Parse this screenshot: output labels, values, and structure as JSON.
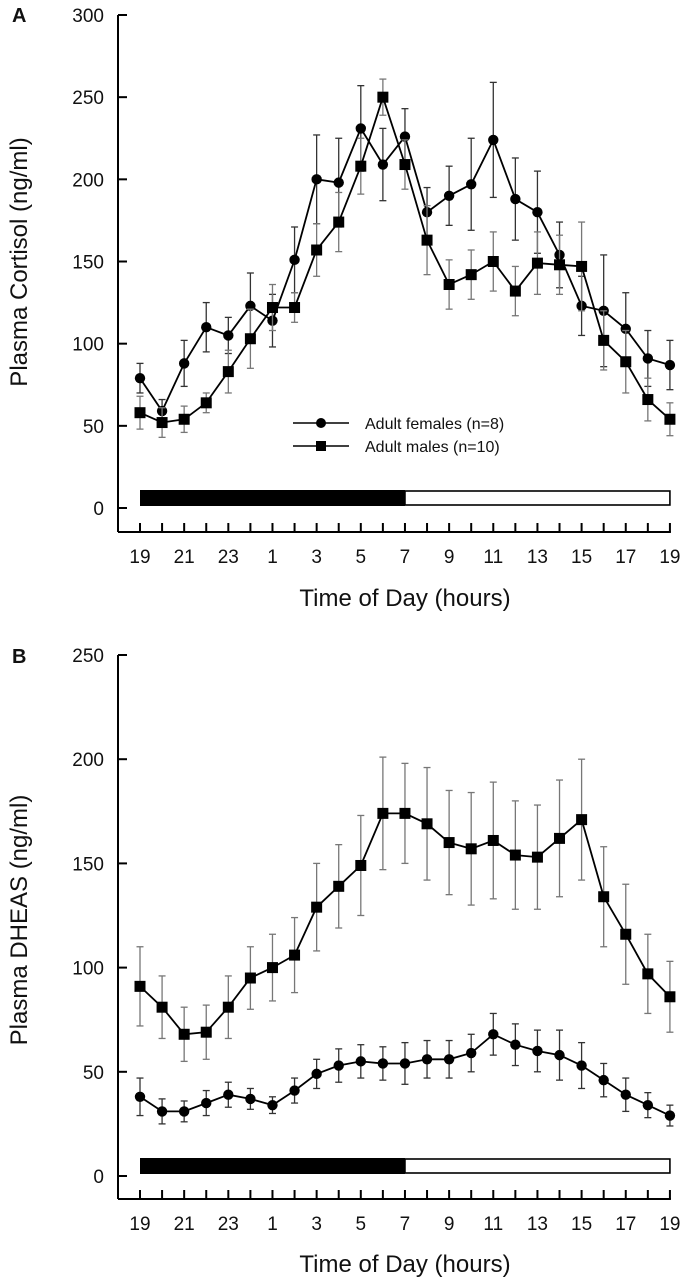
{
  "chart_data": [
    {
      "type": "line",
      "panel_label": "A",
      "title": "",
      "xlabel": "Time of Day (hours)",
      "ylabel": "Plasma Cortisol (ng/ml)",
      "ylim": [
        0,
        300
      ],
      "yticks": [
        0,
        50,
        100,
        150,
        200,
        250,
        300
      ],
      "x": [
        19,
        20,
        21,
        22,
        23,
        24,
        1,
        2,
        3,
        4,
        5,
        6,
        7,
        8,
        9,
        10,
        11,
        12,
        13,
        14,
        15,
        16,
        17,
        18,
        19
      ],
      "x_tick_labels": [
        "19",
        "",
        "21",
        "",
        "23",
        "",
        "1",
        "",
        "3",
        "",
        "5",
        "",
        "7",
        "",
        "9",
        "",
        "11",
        "",
        "13",
        "",
        "15",
        "",
        "17",
        "",
        "19"
      ],
      "grid": false,
      "legend": {
        "placement": "center-left",
        "entries": [
          "Adult females (n=8)",
          "Adult males (n=10)"
        ]
      },
      "light_dark_bar": {
        "dark": "19-7",
        "light": "7-19"
      },
      "series": [
        {
          "name": "Adult females (n=8)",
          "marker": "circle",
          "values": [
            79,
            59,
            88,
            110,
            105,
            123,
            114,
            151,
            200,
            198,
            231,
            209,
            226,
            180,
            190,
            197,
            224,
            188,
            180,
            154,
            123,
            120,
            109,
            91,
            87
          ],
          "errors": [
            9,
            7,
            14,
            15,
            11,
            20,
            16,
            20,
            27,
            27,
            26,
            22,
            17,
            15,
            18,
            28,
            35,
            25,
            25,
            20,
            18,
            34,
            22,
            17,
            15
          ]
        },
        {
          "name": "Adult males (n=10)",
          "marker": "square",
          "values": [
            58,
            52,
            54,
            64,
            83,
            103,
            122,
            122,
            157,
            174,
            208,
            250,
            209,
            163,
            136,
            142,
            150,
            132,
            149,
            148,
            147,
            102,
            89,
            66,
            54
          ],
          "errors": [
            10,
            9,
            8,
            6,
            13,
            18,
            14,
            9,
            16,
            18,
            17,
            11,
            15,
            21,
            15,
            15,
            18,
            15,
            19,
            18,
            27,
            18,
            19,
            13,
            10
          ]
        }
      ]
    },
    {
      "type": "line",
      "panel_label": "B",
      "title": "",
      "xlabel": "Time of Day (hours)",
      "ylabel": "Plasma DHEAS (ng/ml)",
      "ylim": [
        0,
        250
      ],
      "yticks": [
        0,
        50,
        100,
        150,
        200,
        250
      ],
      "x": [
        19,
        20,
        21,
        22,
        23,
        24,
        1,
        2,
        3,
        4,
        5,
        6,
        7,
        8,
        9,
        10,
        11,
        12,
        13,
        14,
        15,
        16,
        17,
        18,
        19
      ],
      "x_tick_labels": [
        "19",
        "",
        "21",
        "",
        "23",
        "",
        "1",
        "",
        "3",
        "",
        "5",
        "",
        "7",
        "",
        "9",
        "",
        "11",
        "",
        "13",
        "",
        "15",
        "",
        "17",
        "",
        "19"
      ],
      "grid": false,
      "light_dark_bar": {
        "dark": "19-7",
        "light": "7-19"
      },
      "series": [
        {
          "name": "Adult females (n=8)",
          "marker": "circle",
          "values": [
            38,
            31,
            31,
            35,
            39,
            37,
            34,
            41,
            49,
            53,
            55,
            54,
            54,
            56,
            56,
            59,
            68,
            63,
            60,
            58,
            53,
            46,
            39,
            34,
            29
          ],
          "errors": [
            9,
            6,
            5,
            6,
            6,
            5,
            4,
            6,
            7,
            8,
            8,
            8,
            10,
            9,
            9,
            9,
            10,
            10,
            10,
            12,
            11,
            8,
            8,
            6,
            5
          ]
        },
        {
          "name": "Adult males (n=10)",
          "marker": "square",
          "values": [
            91,
            81,
            68,
            69,
            81,
            95,
            100,
            106,
            129,
            139,
            149,
            174,
            174,
            169,
            160,
            157,
            161,
            154,
            153,
            162,
            171,
            134,
            116,
            97,
            86
          ],
          "errors": [
            19,
            15,
            13,
            13,
            15,
            15,
            16,
            18,
            21,
            20,
            24,
            27,
            24,
            27,
            25,
            27,
            28,
            26,
            25,
            28,
            29,
            24,
            24,
            19,
            17
          ]
        }
      ]
    }
  ]
}
